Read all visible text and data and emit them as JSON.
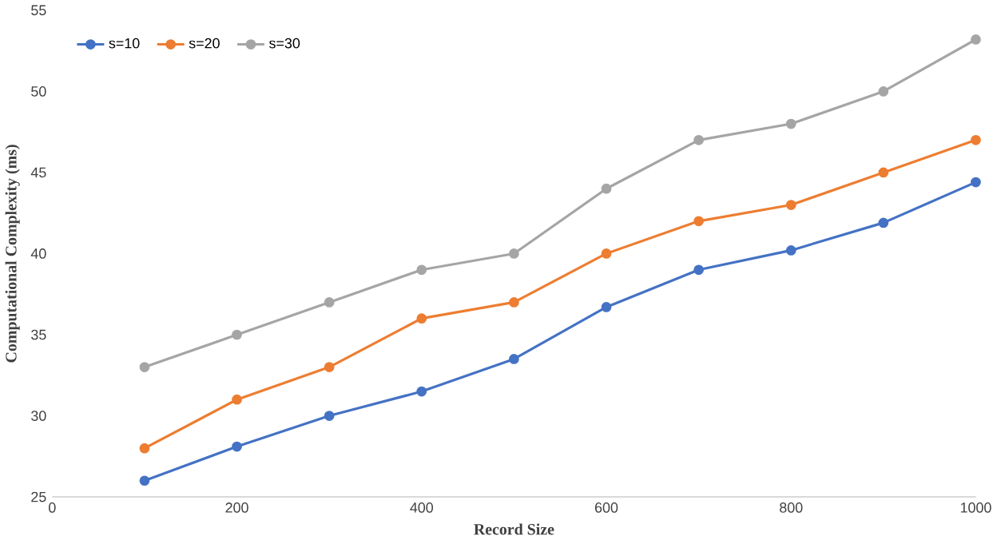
{
  "chart_data": {
    "type": "line",
    "xlabel": "Record Size",
    "ylabel": "Computational Complexity (ms)",
    "x": [
      100,
      200,
      300,
      400,
      500,
      600,
      700,
      800,
      900,
      1000
    ],
    "series": [
      {
        "name": "s=10",
        "color": "#4472c4",
        "values": [
          26,
          28.1,
          30,
          31.5,
          33.5,
          36.7,
          39,
          40.2,
          41.9,
          44.4
        ]
      },
      {
        "name": "s=20",
        "color": "#ed7d31",
        "values": [
          28,
          31,
          33,
          36,
          37,
          40,
          42,
          43,
          45,
          47
        ]
      },
      {
        "name": "s=30",
        "color": "#a5a5a5",
        "values": [
          33,
          35,
          37,
          39,
          40,
          44,
          47,
          48,
          50,
          53.2
        ]
      }
    ],
    "xlim": [
      0,
      1000
    ],
    "xticks": [
      0,
      200,
      400,
      600,
      800,
      1000
    ],
    "ylim": [
      25,
      55
    ],
    "yticks": [
      25,
      30,
      35,
      40,
      45,
      50,
      55
    ],
    "grid": false,
    "legend": "top left",
    "marker": "circle",
    "line_style": "solid"
  }
}
